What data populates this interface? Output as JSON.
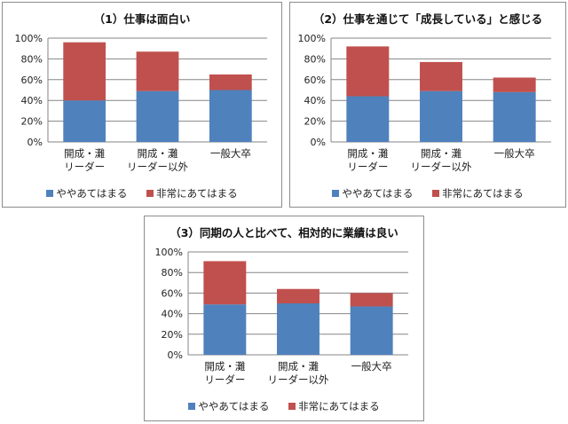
{
  "colors": {
    "series_1": "#4f81bd",
    "series_2": "#c0504d",
    "axis": "#868686",
    "grid": "#868686"
  },
  "chart_data": [
    {
      "type": "bar",
      "stacked": true,
      "title": "（1）仕事は面白い",
      "categories": [
        [
          "開成・灘",
          "リーダー"
        ],
        [
          "開成・灘",
          "リーダー以外"
        ],
        [
          "一般大卒"
        ]
      ],
      "series": [
        {
          "name": "ややあてはまる",
          "values": [
            40,
            49,
            50
          ]
        },
        {
          "name": "非常にあてはまる",
          "values": [
            56,
            38,
            15
          ]
        }
      ],
      "yticks": [
        "0%",
        "20%",
        "40%",
        "60%",
        "80%",
        "100%"
      ],
      "ylim": [
        0,
        100
      ],
      "grid": true,
      "legend": "bottom"
    },
    {
      "type": "bar",
      "stacked": true,
      "title": "（2）仕事を通じて「成長している」と感じる",
      "categories": [
        [
          "開成・灘",
          "リーダー"
        ],
        [
          "開成・灘",
          "リーダー以外"
        ],
        [
          "一般大卒"
        ]
      ],
      "series": [
        {
          "name": "ややあてはまる",
          "values": [
            44,
            49,
            48
          ]
        },
        {
          "name": "非常にあてはまる",
          "values": [
            48,
            28,
            14
          ]
        }
      ],
      "yticks": [
        "0%",
        "20%",
        "40%",
        "60%",
        "80%",
        "100%"
      ],
      "ylim": [
        0,
        100
      ],
      "grid": true,
      "legend": "bottom"
    },
    {
      "type": "bar",
      "stacked": true,
      "title": "（3）同期の人と比べて、相対的に業績は良い",
      "categories": [
        [
          "開成・灘",
          "リーダー"
        ],
        [
          "開成・灘",
          "リーダー以外"
        ],
        [
          "一般大卒"
        ]
      ],
      "series": [
        {
          "name": "ややあてはまる",
          "values": [
            49,
            50,
            47
          ]
        },
        {
          "name": "非常にあてはまる",
          "values": [
            42,
            14,
            13
          ]
        }
      ],
      "yticks": [
        "0%",
        "20%",
        "40%",
        "60%",
        "80%",
        "100%"
      ],
      "ylim": [
        0,
        100
      ],
      "grid": true,
      "legend": "bottom"
    }
  ]
}
